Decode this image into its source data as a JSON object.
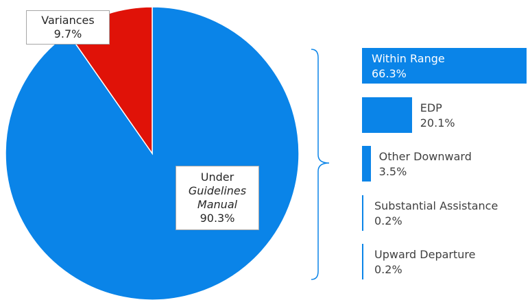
{
  "chart_data": {
    "type": "pie",
    "slices": [
      {
        "label_lines": [
          "Under",
          "Guidelines",
          "Manual"
        ],
        "value": 90.3,
        "value_label": "90.3%",
        "color": "#0a84e8"
      },
      {
        "label_lines": [
          "Variances"
        ],
        "value": 9.7,
        "value_label": "9.7%",
        "color": "#e01208"
      }
    ],
    "breakdown": {
      "type": "bar",
      "of_slice": "Under Guidelines Manual",
      "color": "#0a84e8",
      "items": [
        {
          "label": "Within Range",
          "value": 66.3,
          "value_label": "66.3%"
        },
        {
          "label": "EDP",
          "value": 20.1,
          "value_label": "20.1%"
        },
        {
          "label": "Other Downward",
          "value": 3.5,
          "value_label": "3.5%"
        },
        {
          "label": "Substantial Assistance",
          "value": 0.2,
          "value_label": "0.2%"
        },
        {
          "label": "Upward Departure",
          "value": 0.2,
          "value_label": "0.2%"
        }
      ]
    }
  }
}
